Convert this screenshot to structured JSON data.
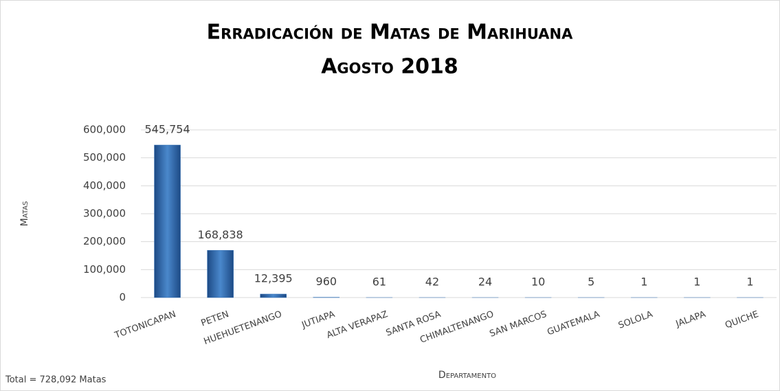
{
  "chart_data": {
    "type": "bar",
    "title": "Erradicación de Matas de Marihuana",
    "subtitle": "Agosto 2018",
    "y_label": "Matas",
    "x_label": "Departamento",
    "annotation": "Total = 728,092 Matas",
    "categories": [
      "TOTONICAPAN",
      "PETEN",
      "HUEHUETENANGO",
      "JUTIAPA",
      "ALTA VERAPAZ",
      "SANTA ROSA",
      "CHIMALTENANGO",
      "SAN MARCOS",
      "GUATEMALA",
      "SOLOLA",
      "JALAPA",
      "QUICHE"
    ],
    "values": [
      545754,
      168838,
      12395,
      960,
      61,
      42,
      24,
      10,
      5,
      1,
      1,
      1
    ],
    "value_labels": [
      "545,754",
      "168,838",
      "12,395",
      "960",
      "61",
      "42",
      "24",
      "10",
      "5",
      "1",
      "1",
      "1"
    ],
    "color": "#2e6db4",
    "ylim": [
      0,
      600000
    ],
    "yticks": [
      0,
      {
        "value": 100000,
        "label": "100,000"
      },
      {
        "value": 200000,
        "label": "200,000"
      },
      {
        "value": 300000,
        "label": "300,000"
      },
      {
        "value": 400000,
        "label": "400,000"
      },
      {
        "value": 500000,
        "label": "500,000"
      },
      {
        "value": 600000,
        "label": "600,000"
      }
    ],
    "grid": true
  }
}
